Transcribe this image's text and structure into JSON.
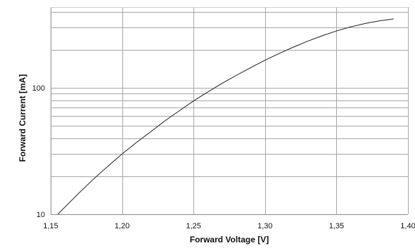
{
  "chart_data": {
    "type": "line",
    "title": "",
    "xlabel": "Forward Voltage [V]",
    "ylabel": "Forward Current [mA]",
    "xlim": [
      1.15,
      1.4
    ],
    "ylim": [
      10,
      400
    ],
    "y_scale": "log",
    "x_tick_labels": [
      "1,15",
      "1,20",
      "1,25",
      "1,30",
      "1,35",
      "1,40"
    ],
    "y_tick_labels": [
      "10",
      "100"
    ],
    "grid": true,
    "legend": "none",
    "series": [
      {
        "x": [
          1.155,
          1.16,
          1.17,
          1.18,
          1.19,
          1.2,
          1.21,
          1.22,
          1.23,
          1.24,
          1.25,
          1.26,
          1.27,
          1.28,
          1.29,
          1.3,
          1.31,
          1.32,
          1.33,
          1.34,
          1.35,
          1.36,
          1.37,
          1.38,
          1.39
        ],
        "y": [
          10.0,
          11.4,
          14.8,
          19.0,
          24.0,
          30.0,
          37.0,
          45.0,
          55.0,
          66.0,
          79.0,
          93.0,
          109.0,
          126.0,
          145.0,
          166.0,
          188.0,
          211.0,
          235.0,
          259.0,
          283.0,
          305.0,
          324.0,
          340.0,
          352.0
        ]
      }
    ],
    "colors": {
      "line": "#333333",
      "grid": "#a6a6a6",
      "axis": "#8c8c8c"
    }
  }
}
